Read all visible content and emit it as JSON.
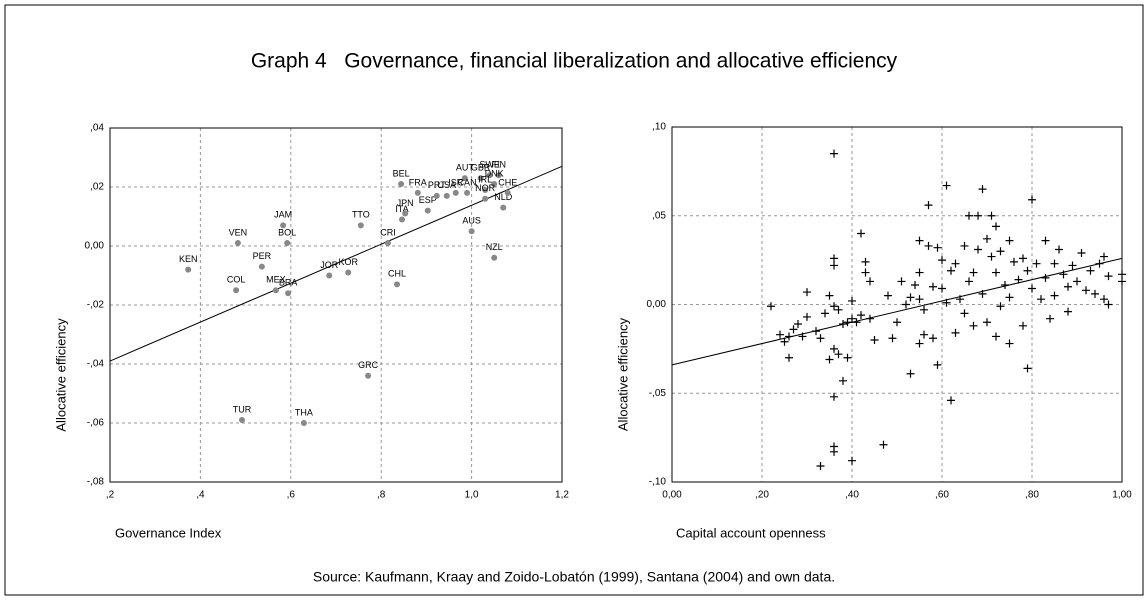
{
  "title": "Graph 4   Governance, financial liberalization and allocative efficiency",
  "source": "Source: Kaufmann, Kraay and Zoido-Lobatón (1999), Santana (2004) and own data.",
  "chart_data": [
    {
      "type": "scatter",
      "marker": "circle",
      "color": "#888888",
      "xlabel": "Governance Index",
      "ylabel": "Allocative efficiency",
      "xlim": [
        0.2,
        1.2
      ],
      "ylim": [
        -0.08,
        0.04
      ],
      "xticks": [
        {
          "value": 0.2,
          "label": ",2"
        },
        {
          "value": 0.4,
          "label": ",4"
        },
        {
          "value": 0.6,
          "label": ",6"
        },
        {
          "value": 0.8,
          "label": ",8"
        },
        {
          "value": 1.0,
          "label": "1,0"
        },
        {
          "value": 1.2,
          "label": "1,2"
        }
      ],
      "yticks": [
        {
          "value": -0.08,
          "label": "-,08"
        },
        {
          "value": -0.06,
          "label": "-,06"
        },
        {
          "value": -0.04,
          "label": "-,04"
        },
        {
          "value": -0.02,
          "label": "-,02"
        },
        {
          "value": 0,
          "label": "0,00"
        },
        {
          "value": 0.02,
          "label": ",02"
        },
        {
          "value": 0.04,
          "label": ",04"
        }
      ],
      "grid": true,
      "labels": [
        "KEN",
        "VEN",
        "COL",
        "PER",
        "MEX",
        "BRA",
        "JAM",
        "BOL",
        "TUR",
        "THA",
        "JOR",
        "KOR",
        "TTO",
        "CRI",
        "GRC",
        "CHL",
        "BEL",
        "FRA",
        "ITA",
        "JPN",
        "ESP",
        "PRT",
        "USA",
        "ISR",
        "AUT",
        "GBR",
        "SWE",
        "FIN",
        "DNK",
        "IRL",
        "CAN",
        "NOR",
        "NLD",
        "CHE",
        "AUS",
        "NZL"
      ],
      "x": [
        0.373,
        0.483,
        0.479,
        0.536,
        0.567,
        0.594,
        0.583,
        0.592,
        0.492,
        0.629,
        0.685,
        0.727,
        0.755,
        0.815,
        0.771,
        0.835,
        0.844,
        0.881,
        0.846,
        0.853,
        0.903,
        0.923,
        0.945,
        0.965,
        0.985,
        1.02,
        1.04,
        1.06,
        1.05,
        1.03,
        0.99,
        1.03,
        1.07,
        1.08,
        1.0,
        1.05
      ],
      "values": [
        -0.008,
        0.001,
        -0.015,
        -0.007,
        -0.015,
        -0.016,
        0.007,
        0.001,
        -0.059,
        -0.06,
        -0.01,
        -0.009,
        0.007,
        0.001,
        -0.044,
        -0.013,
        0.021,
        0.018,
        0.009,
        0.011,
        0.012,
        0.017,
        0.017,
        0.018,
        0.023,
        0.023,
        0.024,
        0.024,
        0.021,
        0.019,
        0.018,
        0.016,
        0.013,
        0.018,
        0.005,
        -0.004
      ],
      "trendline": {
        "x": [
          0.2,
          1.2
        ],
        "values": [
          -0.039,
          0.027
        ]
      }
    },
    {
      "type": "scatter",
      "marker": "plus",
      "color": "#000000",
      "xlabel": "Capital account openness",
      "ylabel": "Allocative efficiency",
      "xlim": [
        0,
        1
      ],
      "ylim": [
        -0.1,
        0.1
      ],
      "xticks": [
        {
          "value": 0,
          "label": "0,00"
        },
        {
          "value": 0.2,
          "label": ",20"
        },
        {
          "value": 0.4,
          "label": ",40"
        },
        {
          "value": 0.6,
          "label": ",60"
        },
        {
          "value": 0.8,
          "label": ",80"
        },
        {
          "value": 1.0,
          "label": "1,00"
        }
      ],
      "yticks": [
        {
          "value": -0.1,
          "label": "-,10"
        },
        {
          "value": -0.05,
          "label": "-,05"
        },
        {
          "value": 0,
          "label": "0,00"
        },
        {
          "value": 0.05,
          "label": ",05"
        },
        {
          "value": 0.1,
          "label": ",10"
        }
      ],
      "grid": true,
      "x": [
        0.22,
        0.24,
        0.25,
        0.26,
        0.26,
        0.27,
        0.28,
        0.29,
        0.3,
        0.3,
        0.32,
        0.33,
        0.33,
        0.34,
        0.35,
        0.35,
        0.36,
        0.36,
        0.36,
        0.36,
        0.36,
        0.36,
        0.36,
        0.36,
        0.37,
        0.37,
        0.38,
        0.38,
        0.39,
        0.39,
        0.4,
        0.4,
        0.4,
        0.41,
        0.42,
        0.42,
        0.43,
        0.43,
        0.44,
        0.44,
        0.45,
        0.47,
        0.48,
        0.49,
        0.5,
        0.51,
        0.52,
        0.53,
        0.53,
        0.54,
        0.55,
        0.55,
        0.55,
        0.55,
        0.56,
        0.56,
        0.57,
        0.57,
        0.58,
        0.58,
        0.59,
        0.59,
        0.6,
        0.6,
        0.61,
        0.61,
        0.62,
        0.62,
        0.63,
        0.63,
        0.64,
        0.65,
        0.65,
        0.66,
        0.66,
        0.67,
        0.67,
        0.68,
        0.68,
        0.69,
        0.69,
        0.7,
        0.7,
        0.71,
        0.71,
        0.72,
        0.72,
        0.72,
        0.73,
        0.73,
        0.74,
        0.75,
        0.75,
        0.75,
        0.76,
        0.77,
        0.78,
        0.78,
        0.79,
        0.79,
        0.8,
        0.8,
        0.81,
        0.82,
        0.83,
        0.83,
        0.84,
        0.85,
        0.85,
        0.86,
        0.87,
        0.88,
        0.88,
        0.89,
        0.9,
        0.91,
        0.92,
        0.93,
        0.94,
        0.95,
        0.96,
        0.96,
        0.97,
        0.97,
        1.0,
        1.0
      ],
      "values": [
        -0.001,
        -0.017,
        -0.021,
        -0.018,
        -0.03,
        -0.014,
        -0.011,
        -0.018,
        -0.007,
        0.007,
        -0.015,
        -0.019,
        -0.091,
        -0.005,
        -0.031,
        0.005,
        0.085,
        0.026,
        0.022,
        -0.001,
        -0.025,
        -0.052,
        -0.08,
        -0.083,
        -0.028,
        -0.003,
        -0.011,
        -0.043,
        -0.03,
        -0.01,
        -0.088,
        0.002,
        -0.008,
        -0.01,
        0.04,
        -0.006,
        0.024,
        0.018,
        0.013,
        -0.008,
        -0.02,
        -0.079,
        0.005,
        -0.019,
        -0.01,
        0.013,
        0.0,
        -0.039,
        0.004,
        0.011,
        -0.022,
        0.036,
        0.018,
        0.003,
        -0.017,
        -0.003,
        0.033,
        0.056,
        -0.019,
        0.01,
        0.032,
        -0.034,
        0.025,
        0.009,
        0.067,
        0.001,
        -0.054,
        0.019,
        -0.016,
        0.023,
        0.003,
        0.033,
        -0.005,
        0.05,
        0.013,
        0.018,
        -0.012,
        0.031,
        0.05,
        0.065,
        0.006,
        0.037,
        -0.01,
        0.05,
        0.027,
        0.044,
        0.018,
        -0.018,
        0.03,
        -0.001,
        0.011,
        -0.022,
        0.036,
        0.004,
        0.024,
        0.014,
        0.026,
        -0.012,
        0.019,
        -0.036,
        0.059,
        0.009,
        0.023,
        0.003,
        0.036,
        0.015,
        -0.008,
        0.023,
        0.005,
        0.031,
        0.017,
        0.01,
        -0.004,
        0.022,
        0.013,
        0.029,
        0.008,
        0.019,
        0.006,
        0.023,
        0.027,
        0.003,
        0.016,
        0.0,
        0.017,
        0.013
      ],
      "trendline": {
        "x": [
          0,
          1
        ],
        "values": [
          -0.034,
          0.026
        ]
      }
    }
  ]
}
